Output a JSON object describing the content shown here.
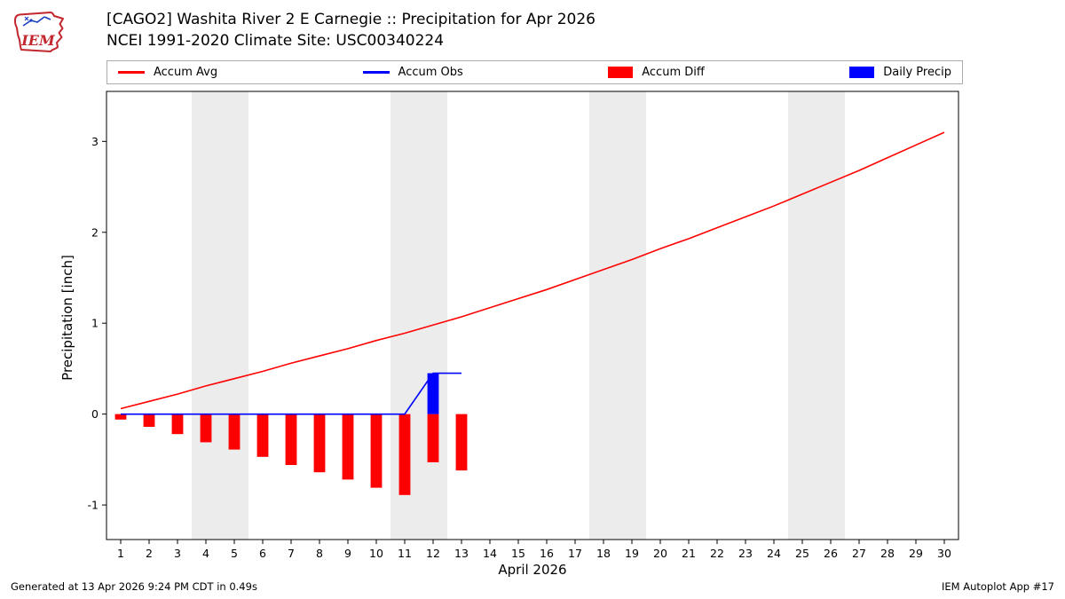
{
  "header": {
    "title_line1": "[CAGO2] Washita River 2 E Carnegie :: Precipitation for Apr 2026",
    "title_line2": "NCEI 1991-2020 Climate Site: USC00340224",
    "logo_text": "IEM"
  },
  "legend": {
    "items": [
      {
        "label": "Accum Avg",
        "type": "line",
        "color": "#ff0000"
      },
      {
        "label": "Accum Obs",
        "type": "line",
        "color": "#0000ff"
      },
      {
        "label": "Accum Diff",
        "type": "rect",
        "color": "#ff0000"
      },
      {
        "label": "Daily Precip",
        "type": "rect",
        "color": "#0000ff"
      }
    ]
  },
  "chart_data": {
    "type": "line+bar",
    "title": "[CAGO2] Washita River 2 E Carnegie :: Precipitation for Apr 2026",
    "subtitle": "NCEI 1991-2020 Climate Site: USC00340224",
    "xlabel": "April 2026",
    "ylabel": "Precipitation [inch]",
    "xlim": [
      0.5,
      30.5
    ],
    "ylim": [
      -1.38,
      3.55
    ],
    "yticks": [
      -1,
      0,
      1,
      2,
      3
    ],
    "xticks": [
      1,
      2,
      3,
      4,
      5,
      6,
      7,
      8,
      9,
      10,
      11,
      12,
      13,
      14,
      15,
      16,
      17,
      18,
      19,
      20,
      21,
      22,
      23,
      24,
      25,
      26,
      27,
      28,
      29,
      30
    ],
    "weekend_bands": [
      [
        3.5,
        5.5
      ],
      [
        10.5,
        12.5
      ],
      [
        17.5,
        19.5
      ],
      [
        24.5,
        26.5
      ]
    ],
    "band_color": "#ececec",
    "series": [
      {
        "name": "Accum Diff",
        "type": "bar",
        "color": "#ff0000",
        "x": [
          1,
          2,
          3,
          4,
          5,
          6,
          7,
          8,
          9,
          10,
          11,
          12,
          13
        ],
        "y": [
          -0.06,
          -0.14,
          -0.22,
          -0.31,
          -0.39,
          -0.47,
          -0.56,
          -0.64,
          -0.72,
          -0.81,
          -0.89,
          -0.53,
          -0.62
        ]
      },
      {
        "name": "Daily Precip",
        "type": "bar",
        "color": "#0000ff",
        "x": [
          12
        ],
        "y": [
          0.45
        ]
      },
      {
        "name": "Accum Avg",
        "type": "line",
        "color": "#ff0000",
        "x": [
          1,
          2,
          3,
          4,
          5,
          6,
          7,
          8,
          9,
          10,
          11,
          12,
          13,
          14,
          15,
          16,
          17,
          18,
          19,
          20,
          21,
          22,
          23,
          24,
          25,
          26,
          27,
          28,
          29,
          30
        ],
        "y": [
          0.06,
          0.14,
          0.22,
          0.31,
          0.39,
          0.47,
          0.56,
          0.64,
          0.72,
          0.81,
          0.89,
          0.98,
          1.07,
          1.17,
          1.27,
          1.37,
          1.48,
          1.59,
          1.7,
          1.82,
          1.93,
          2.05,
          2.17,
          2.29,
          2.42,
          2.55,
          2.68,
          2.82,
          2.96,
          3.1
        ]
      },
      {
        "name": "Accum Obs",
        "type": "line",
        "color": "#0000ff",
        "x": [
          1,
          2,
          3,
          4,
          5,
          6,
          7,
          8,
          9,
          10,
          11,
          12,
          13
        ],
        "y": [
          0,
          0,
          0,
          0,
          0,
          0,
          0,
          0,
          0,
          0,
          0,
          0.45,
          0.45
        ]
      }
    ]
  },
  "footer": {
    "left": "Generated at 13 Apr 2026 9:24 PM CDT in 0.49s",
    "right": "IEM Autoplot App #17"
  }
}
